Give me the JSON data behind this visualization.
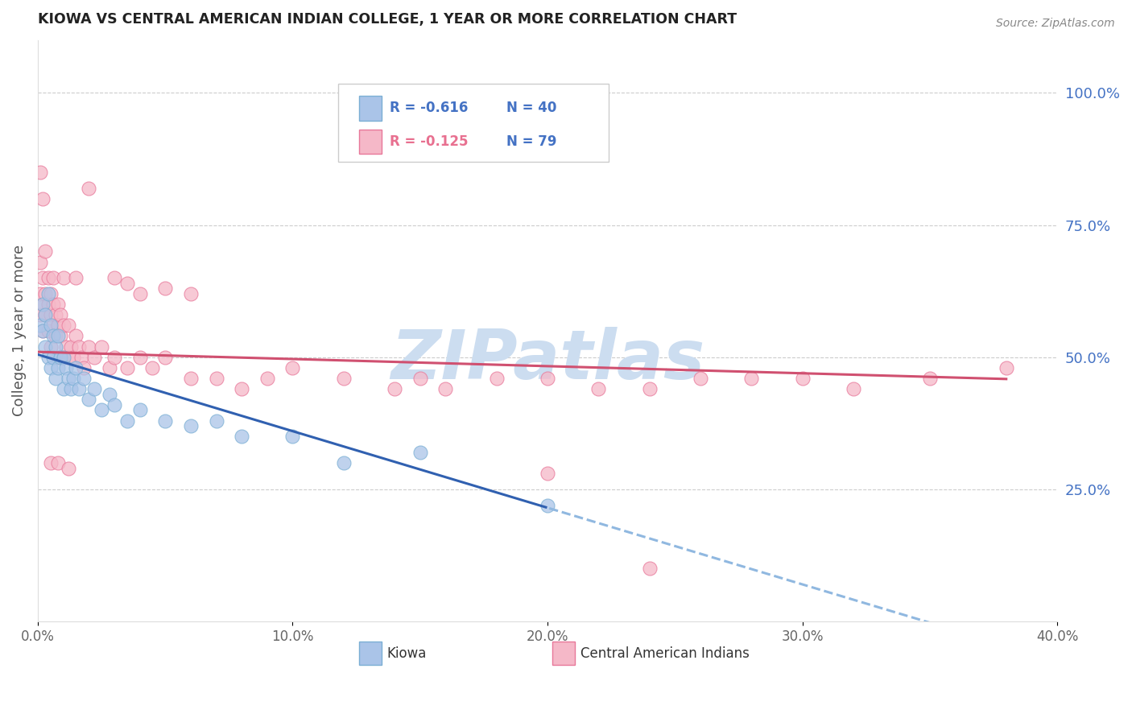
{
  "title": "KIOWA VS CENTRAL AMERICAN INDIAN COLLEGE, 1 YEAR OR MORE CORRELATION CHART",
  "source": "Source: ZipAtlas.com",
  "ylabel": "College, 1 year or more",
  "right_ytick_labels": [
    "100.0%",
    "75.0%",
    "50.0%",
    "25.0%"
  ],
  "right_ytick_values": [
    1.0,
    0.75,
    0.5,
    0.25
  ],
  "xlim": [
    0.0,
    0.4
  ],
  "ylim": [
    0.0,
    1.1
  ],
  "xtick_labels": [
    "0.0%",
    "10.0%",
    "20.0%",
    "30.0%",
    "40.0%"
  ],
  "xtick_values": [
    0.0,
    0.1,
    0.2,
    0.3,
    0.4
  ],
  "grid_color": "#cccccc",
  "background_color": "#ffffff",
  "kiowa_color": "#aac4e8",
  "kiowa_edge_color": "#7bafd4",
  "central_color": "#f5b8c8",
  "central_edge_color": "#e8789a",
  "watermark": "ZIPatlas",
  "watermark_color": "#ccddf0",
  "legend_R_kiowa": "R = -0.616",
  "legend_N_kiowa": "N = 40",
  "legend_R_central": "R = -0.125",
  "legend_N_central": "N = 79",
  "kiowa_line_color": "#3060b0",
  "kiowa_dash_color": "#90b8e0",
  "central_line_color": "#d05070",
  "kiowa_x": [
    0.001,
    0.002,
    0.002,
    0.003,
    0.003,
    0.004,
    0.004,
    0.005,
    0.005,
    0.006,
    0.006,
    0.007,
    0.007,
    0.008,
    0.008,
    0.009,
    0.01,
    0.01,
    0.011,
    0.012,
    0.013,
    0.014,
    0.015,
    0.016,
    0.018,
    0.02,
    0.022,
    0.025,
    0.028,
    0.03,
    0.035,
    0.04,
    0.05,
    0.06,
    0.07,
    0.08,
    0.1,
    0.12,
    0.15,
    0.2
  ],
  "kiowa_y": [
    0.56,
    0.6,
    0.55,
    0.58,
    0.52,
    0.62,
    0.5,
    0.56,
    0.48,
    0.54,
    0.5,
    0.52,
    0.46,
    0.54,
    0.48,
    0.5,
    0.5,
    0.44,
    0.48,
    0.46,
    0.44,
    0.46,
    0.48,
    0.44,
    0.46,
    0.42,
    0.44,
    0.4,
    0.43,
    0.41,
    0.38,
    0.4,
    0.38,
    0.37,
    0.38,
    0.35,
    0.35,
    0.3,
    0.32,
    0.22
  ],
  "central_x": [
    0.001,
    0.001,
    0.001,
    0.002,
    0.002,
    0.002,
    0.003,
    0.003,
    0.003,
    0.004,
    0.004,
    0.004,
    0.005,
    0.005,
    0.005,
    0.006,
    0.006,
    0.006,
    0.007,
    0.007,
    0.008,
    0.008,
    0.008,
    0.009,
    0.009,
    0.01,
    0.01,
    0.011,
    0.012,
    0.012,
    0.013,
    0.014,
    0.015,
    0.016,
    0.017,
    0.018,
    0.02,
    0.022,
    0.025,
    0.028,
    0.03,
    0.035,
    0.04,
    0.045,
    0.05,
    0.06,
    0.07,
    0.08,
    0.09,
    0.1,
    0.12,
    0.14,
    0.15,
    0.16,
    0.18,
    0.2,
    0.22,
    0.24,
    0.26,
    0.28,
    0.3,
    0.32,
    0.35,
    0.38,
    0.001,
    0.002,
    0.01,
    0.015,
    0.02,
    0.03,
    0.035,
    0.04,
    0.05,
    0.06,
    0.005,
    0.008,
    0.012,
    0.2,
    0.24
  ],
  "central_y": [
    0.62,
    0.58,
    0.68,
    0.6,
    0.65,
    0.55,
    0.62,
    0.58,
    0.7,
    0.6,
    0.65,
    0.55,
    0.62,
    0.58,
    0.52,
    0.6,
    0.56,
    0.65,
    0.58,
    0.54,
    0.6,
    0.56,
    0.5,
    0.58,
    0.54,
    0.56,
    0.5,
    0.52,
    0.56,
    0.5,
    0.52,
    0.5,
    0.54,
    0.52,
    0.5,
    0.48,
    0.52,
    0.5,
    0.52,
    0.48,
    0.5,
    0.48,
    0.5,
    0.48,
    0.5,
    0.46,
    0.46,
    0.44,
    0.46,
    0.48,
    0.46,
    0.44,
    0.46,
    0.44,
    0.46,
    0.46,
    0.44,
    0.44,
    0.46,
    0.46,
    0.46,
    0.44,
    0.46,
    0.48,
    0.85,
    0.8,
    0.65,
    0.65,
    0.82,
    0.65,
    0.64,
    0.62,
    0.63,
    0.62,
    0.3,
    0.3,
    0.29,
    0.28,
    0.1
  ]
}
